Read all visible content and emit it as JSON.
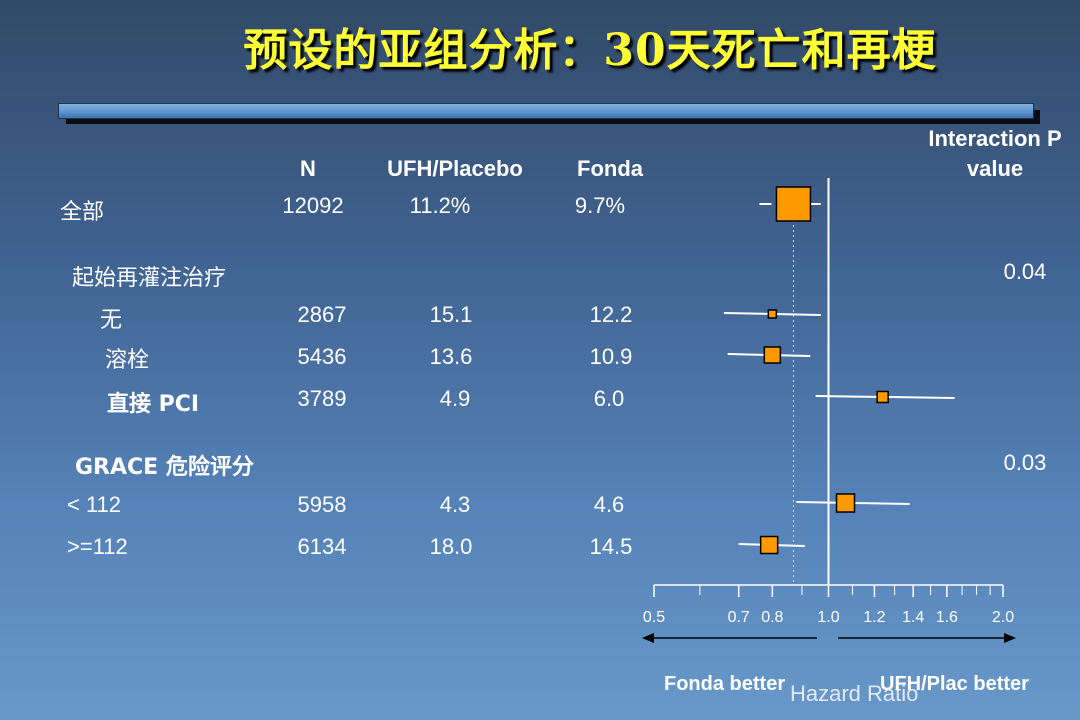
{
  "title": "预设的亚组分析：30天死亡和再梗",
  "columns": {
    "n": "N",
    "ufh": "UFH/Placebo",
    "fonda": "Fonda",
    "interaction_line1": "Interaction P",
    "interaction_line2": "value"
  },
  "rows": [
    {
      "label": "全部",
      "n": "12092",
      "ufh": "11.2%",
      "fonda": "9.7%"
    },
    {
      "label": "起始再灌注治疗",
      "interaction": "0.04"
    },
    {
      "label": "无",
      "n": "2867",
      "ufh": "15.1",
      "fonda": "12.2"
    },
    {
      "label": "溶栓",
      "n": "5436",
      "ufh": "13.6",
      "fonda": "10.9"
    },
    {
      "label": "直接 PCI",
      "n": "3789",
      "ufh": "4.9",
      "fonda": "6.0"
    },
    {
      "label": "GRACE 危险评分",
      "interaction": "0.03"
    },
    {
      "label": "< 112",
      "n": "5958",
      "ufh": "4.3",
      "fonda": "4.6"
    },
    {
      "label": ">=112",
      "n": "6134",
      "ufh": "18.0",
      "fonda": "14.5"
    }
  ],
  "footer": {
    "left": "Fonda better",
    "right": "UFH/Plac better",
    "axis_title": "Hazard Ratio"
  },
  "colors": {
    "marker": "#ff9900",
    "title": "#ffff33",
    "line": "#ffffff"
  },
  "chart_data": {
    "type": "forest",
    "x_scale": "log",
    "xlim": [
      0.5,
      2.0
    ],
    "reference_line": 1.0,
    "overall_dashed_line": 0.87,
    "x_ticks": [
      "0.5",
      "0.7",
      "0.8",
      "1.0",
      "1.2",
      "1.4",
      "1.6",
      "2.0"
    ],
    "xlabel": "Hazard Ratio",
    "points": [
      {
        "row": "全部",
        "hr": 0.87,
        "lo": 0.76,
        "hi": 0.97
      },
      {
        "row": "无",
        "hr": 0.8,
        "lo": 0.66,
        "hi": 0.97
      },
      {
        "row": "溶栓",
        "hr": 0.8,
        "lo": 0.67,
        "hi": 0.93
      },
      {
        "row": "直接 PCI",
        "hr": 1.24,
        "lo": 0.95,
        "hi": 1.65
      },
      {
        "row": "< 112",
        "hr": 1.07,
        "lo": 0.88,
        "hi": 1.38
      },
      {
        "row": ">=112",
        "hr": 0.79,
        "lo": 0.7,
        "hi": 0.91
      }
    ]
  }
}
